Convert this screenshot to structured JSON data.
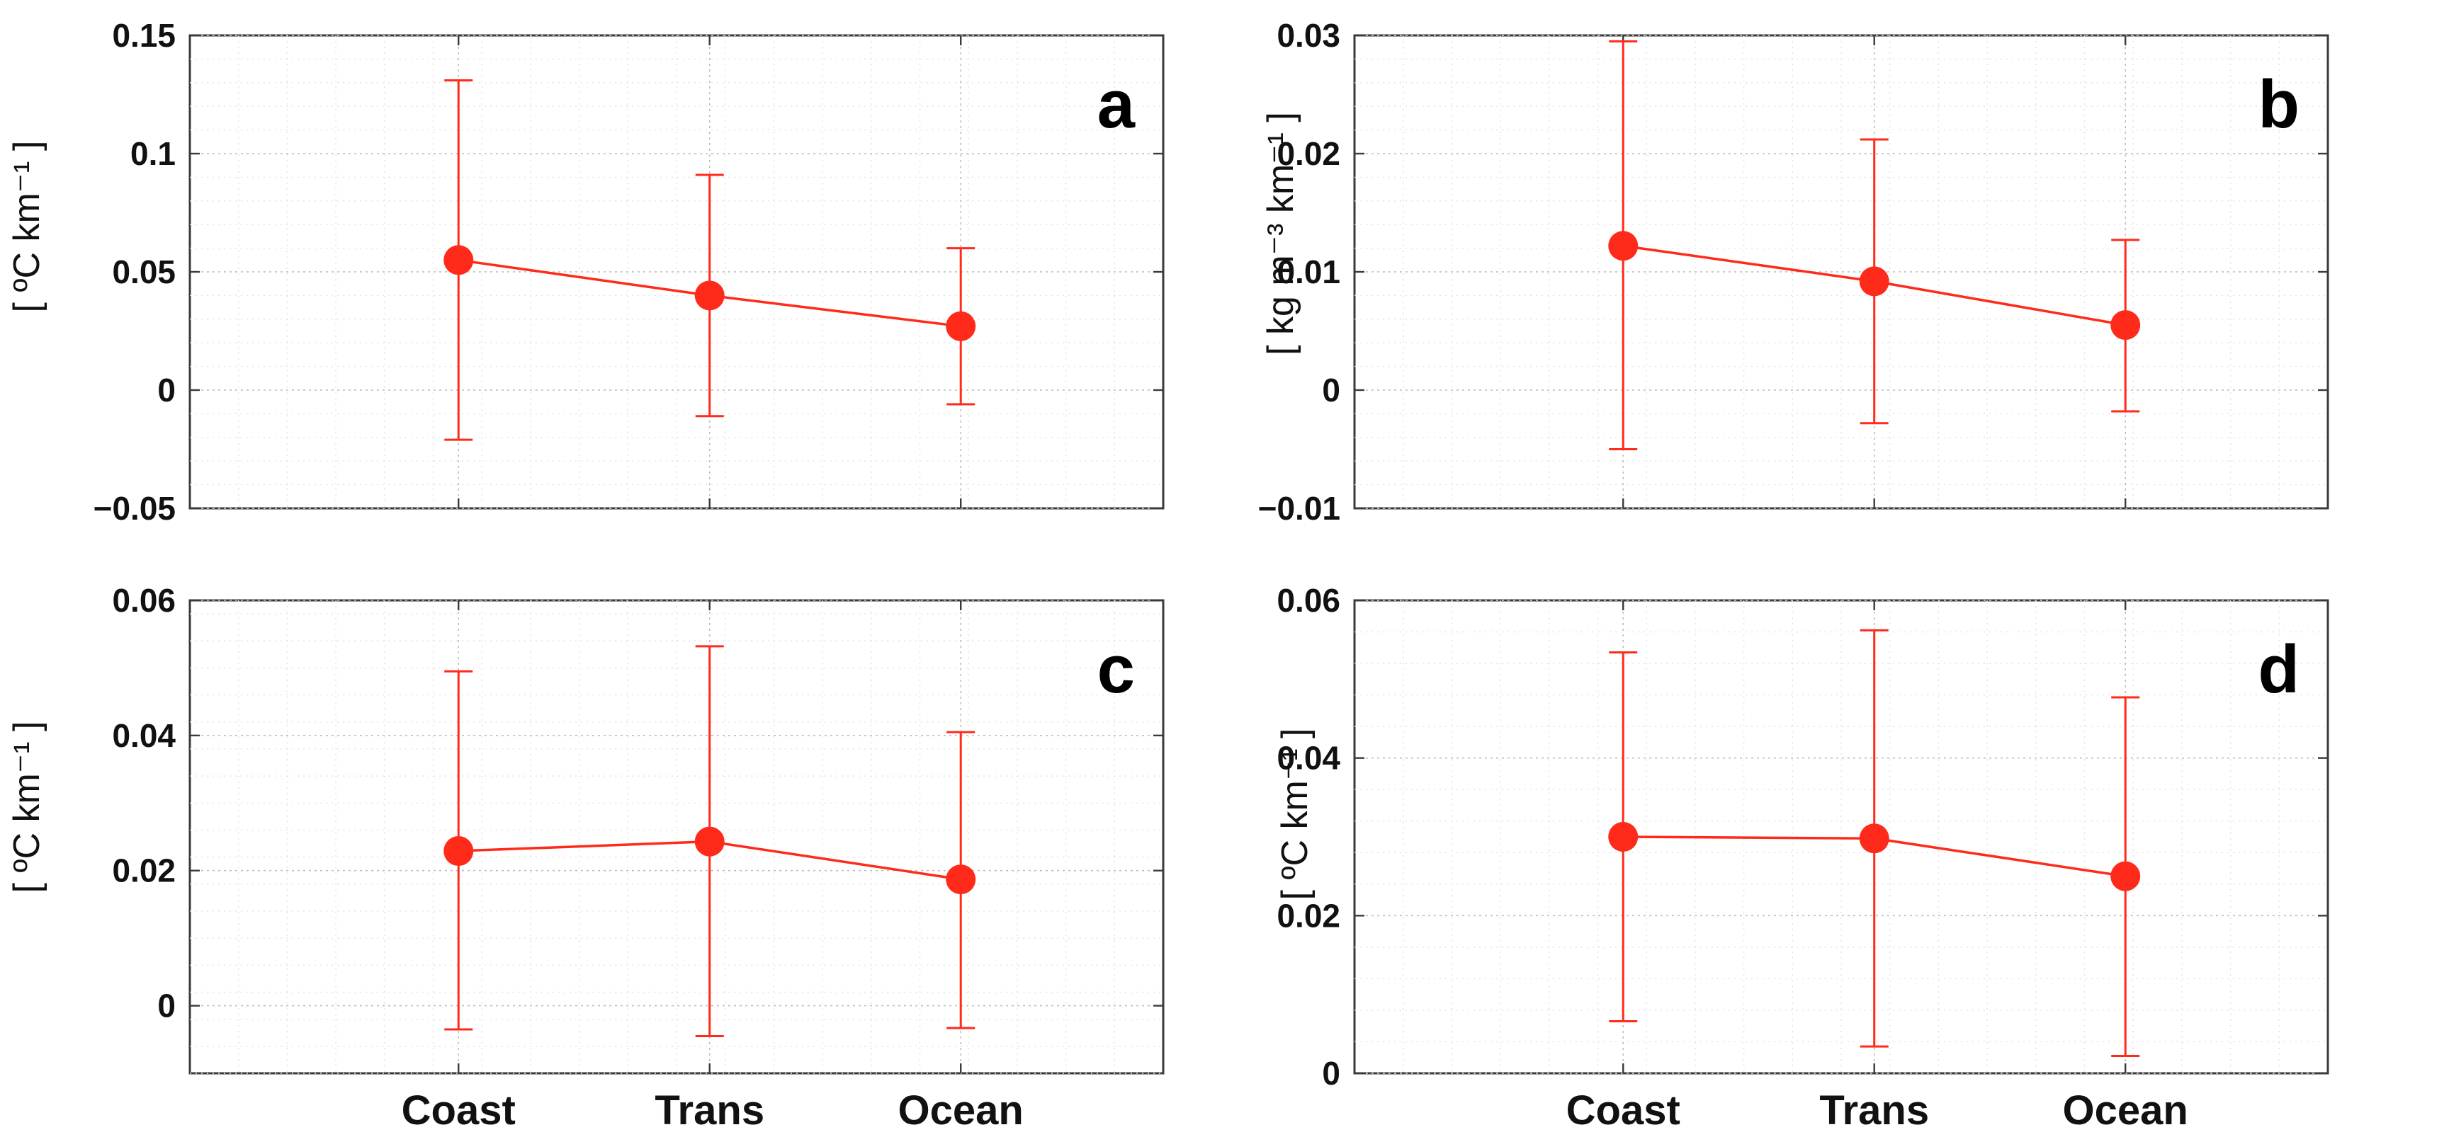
{
  "colors": {
    "series": "#ff2a1a",
    "frame": "#3a3a3a",
    "background": "#ffffff"
  },
  "chart_data": [
    {
      "type": "line",
      "panel": "a",
      "categories": [
        "Coast",
        "Trans",
        "Ocean"
      ],
      "values": [
        0.055,
        0.04,
        0.027
      ],
      "error_lower": [
        -0.021,
        -0.011,
        -0.006
      ],
      "error_upper": [
        0.131,
        0.091,
        0.06
      ],
      "ylim": [
        -0.05,
        0.15
      ],
      "yticks": [
        -0.05,
        0,
        0.05,
        0.1,
        0.15
      ],
      "ytick_labels": [
        "−0.05",
        "0",
        "0.05",
        "0.1",
        "0.15"
      ],
      "ylabel": "[ ºC km⁻¹ ]",
      "show_xticklabels": false
    },
    {
      "type": "line",
      "panel": "b",
      "categories": [
        "Coast",
        "Trans",
        "Ocean"
      ],
      "values": [
        0.0122,
        0.0092,
        0.0055
      ],
      "error_lower": [
        -0.005,
        -0.0028,
        -0.0018
      ],
      "error_upper": [
        0.0295,
        0.0212,
        0.0127
      ],
      "ylim": [
        -0.01,
        0.03
      ],
      "yticks": [
        -0.01,
        0,
        0.01,
        0.02,
        0.03
      ],
      "ytick_labels": [
        "−0.01",
        "0",
        "0.01",
        "0.02",
        "0.03"
      ],
      "ylabel": "[ kg m⁻³ km⁻¹ ]",
      "show_xticklabels": false
    },
    {
      "type": "line",
      "panel": "c",
      "categories": [
        "Coast",
        "Trans",
        "Ocean"
      ],
      "values": [
        0.0229,
        0.0243,
        0.0187
      ],
      "error_lower": [
        -0.0035,
        -0.0045,
        -0.0033
      ],
      "error_upper": [
        0.0495,
        0.0532,
        0.0405
      ],
      "ylim": [
        -0.01,
        0.06
      ],
      "yticks": [
        0,
        0.02,
        0.04,
        0.06
      ],
      "ytick_labels": [
        "0",
        "0.02",
        "0.04",
        "0.06"
      ],
      "ylabel": "[ ºC km⁻¹ ]",
      "show_xticklabels": true
    },
    {
      "type": "line",
      "panel": "d",
      "categories": [
        "Coast",
        "Trans",
        "Ocean"
      ],
      "values": [
        0.03,
        0.0298,
        0.025
      ],
      "error_lower": [
        0.0066,
        0.0034,
        0.0022
      ],
      "error_upper": [
        0.0534,
        0.0562,
        0.0477
      ],
      "ylim": [
        0,
        0.06
      ],
      "yticks": [
        0,
        0.02,
        0.04,
        0.06
      ],
      "ytick_labels": [
        "0",
        "0.02",
        "0.04",
        "0.06"
      ],
      "ylabel": "[ ºC km⁻¹ ]",
      "show_xticklabels": true
    }
  ]
}
